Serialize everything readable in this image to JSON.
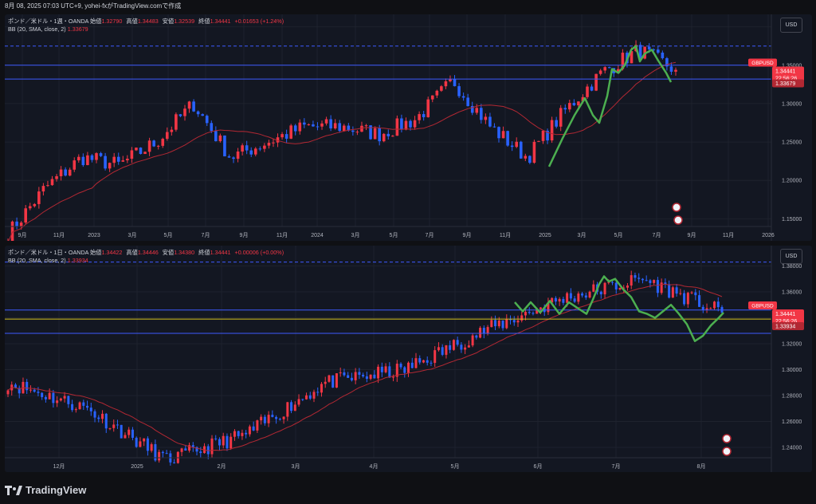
{
  "header": {
    "text": "8月 08, 2025 07:03 UTC+9,  yohei-fxがTradingView.comで作成"
  },
  "footer": {
    "brand": "TradingView",
    "logo_icon": "tradingview-logo-icon"
  },
  "colors": {
    "up": "#f23645",
    "down": "#2962ff",
    "bb": "#b22833",
    "hline": "#3d5afe",
    "yellow": "#d4c21e",
    "wave": "#4caf50"
  },
  "panes": [
    {
      "id": "weekly",
      "info": {
        "symbol": "ポンド／米ドル・1週・OANDA",
        "open_label": "始値",
        "open": "1.32790",
        "high_label": "高値",
        "high": "1.34483",
        "low_label": "安値",
        "low": "1.32539",
        "close_label": "終値",
        "close": "1.34441",
        "change": "+0.01653 (+1.24%)",
        "bb_label": "BB (20, SMA, close, 2)",
        "bb_value": "1.33679"
      },
      "currency_button": "USD",
      "price_ticks": [
        "1.40000",
        "1.35000",
        "1.30000",
        "1.25000",
        "1.20000",
        "1.15000"
      ],
      "time_ticks": [
        "9月",
        "11月",
        "2023",
        "3月",
        "5月",
        "7月",
        "9月",
        "11月",
        "2024",
        "3月",
        "5月",
        "7月",
        "9月",
        "11月",
        "2025",
        "3月",
        "5月",
        "7月",
        "9月",
        "11月",
        "2026"
      ],
      "tags": {
        "symbol": "GBPUSD",
        "price": "1.34441",
        "countdown": "22:56:26",
        "bb": "1.33679"
      }
    },
    {
      "id": "daily",
      "info": {
        "symbol": "ポンド／米ドル・1日・OANDA",
        "open_label": "始値",
        "open": "1.34422",
        "high_label": "高値",
        "high": "1.34446",
        "low_label": "安値",
        "low": "1.34380",
        "close_label": "終値",
        "close": "1.34441",
        "change": "+0.00006 (+0.00%)",
        "bb_label": "BB (20, SMA, close, 2)",
        "bb_value": "1.33934"
      },
      "currency_button": "USD",
      "price_ticks": [
        "1.38000",
        "1.36000",
        "1.34000",
        "1.32000",
        "1.30000",
        "1.28000",
        "1.26000",
        "1.24000"
      ],
      "time_ticks": [
        "12月",
        "2025",
        "2月",
        "3月",
        "4月",
        "5月",
        "6月",
        "7月",
        "8月"
      ],
      "tags": {
        "symbol": "GBPUSD",
        "price": "1.34441",
        "countdown": "22:56:26",
        "bb": "1.33934"
      }
    }
  ],
  "chart_data": [
    {
      "type": "line",
      "title": "ポンド／米ドル・1週・OANDA",
      "x": [
        "2022-09",
        "2022-11",
        "2023-01",
        "2023-03",
        "2023-05",
        "2023-07",
        "2023-09",
        "2023-11",
        "2024-01",
        "2024-03",
        "2024-05",
        "2024-07",
        "2024-09",
        "2024-11",
        "2025-01",
        "2025-03",
        "2025-05",
        "2025-07",
        "2025-08"
      ],
      "series": [
        {
          "values": [
            1.13,
            1.19,
            1.23,
            1.22,
            1.25,
            1.3,
            1.23,
            1.25,
            1.27,
            1.27,
            1.26,
            1.28,
            1.33,
            1.27,
            1.23,
            1.29,
            1.34,
            1.37,
            1.344
          ]
        }
      ],
      "ylim": [
        1.14,
        1.41
      ],
      "grid": true
    },
    {
      "type": "line",
      "title": "ポンド／米ドル・1日・OANDA",
      "x": [
        "2024-11",
        "2024-12",
        "2025-01",
        "2025-02",
        "2025-03",
        "2025-04",
        "2025-05",
        "2025-06",
        "2025-07",
        "2025-08"
      ],
      "series": [
        {
          "values": [
            1.29,
            1.27,
            1.23,
            1.25,
            1.29,
            1.3,
            1.33,
            1.355,
            1.37,
            1.344
          ]
        }
      ],
      "ylim": [
        1.232,
        1.392
      ],
      "grid": true
    }
  ]
}
